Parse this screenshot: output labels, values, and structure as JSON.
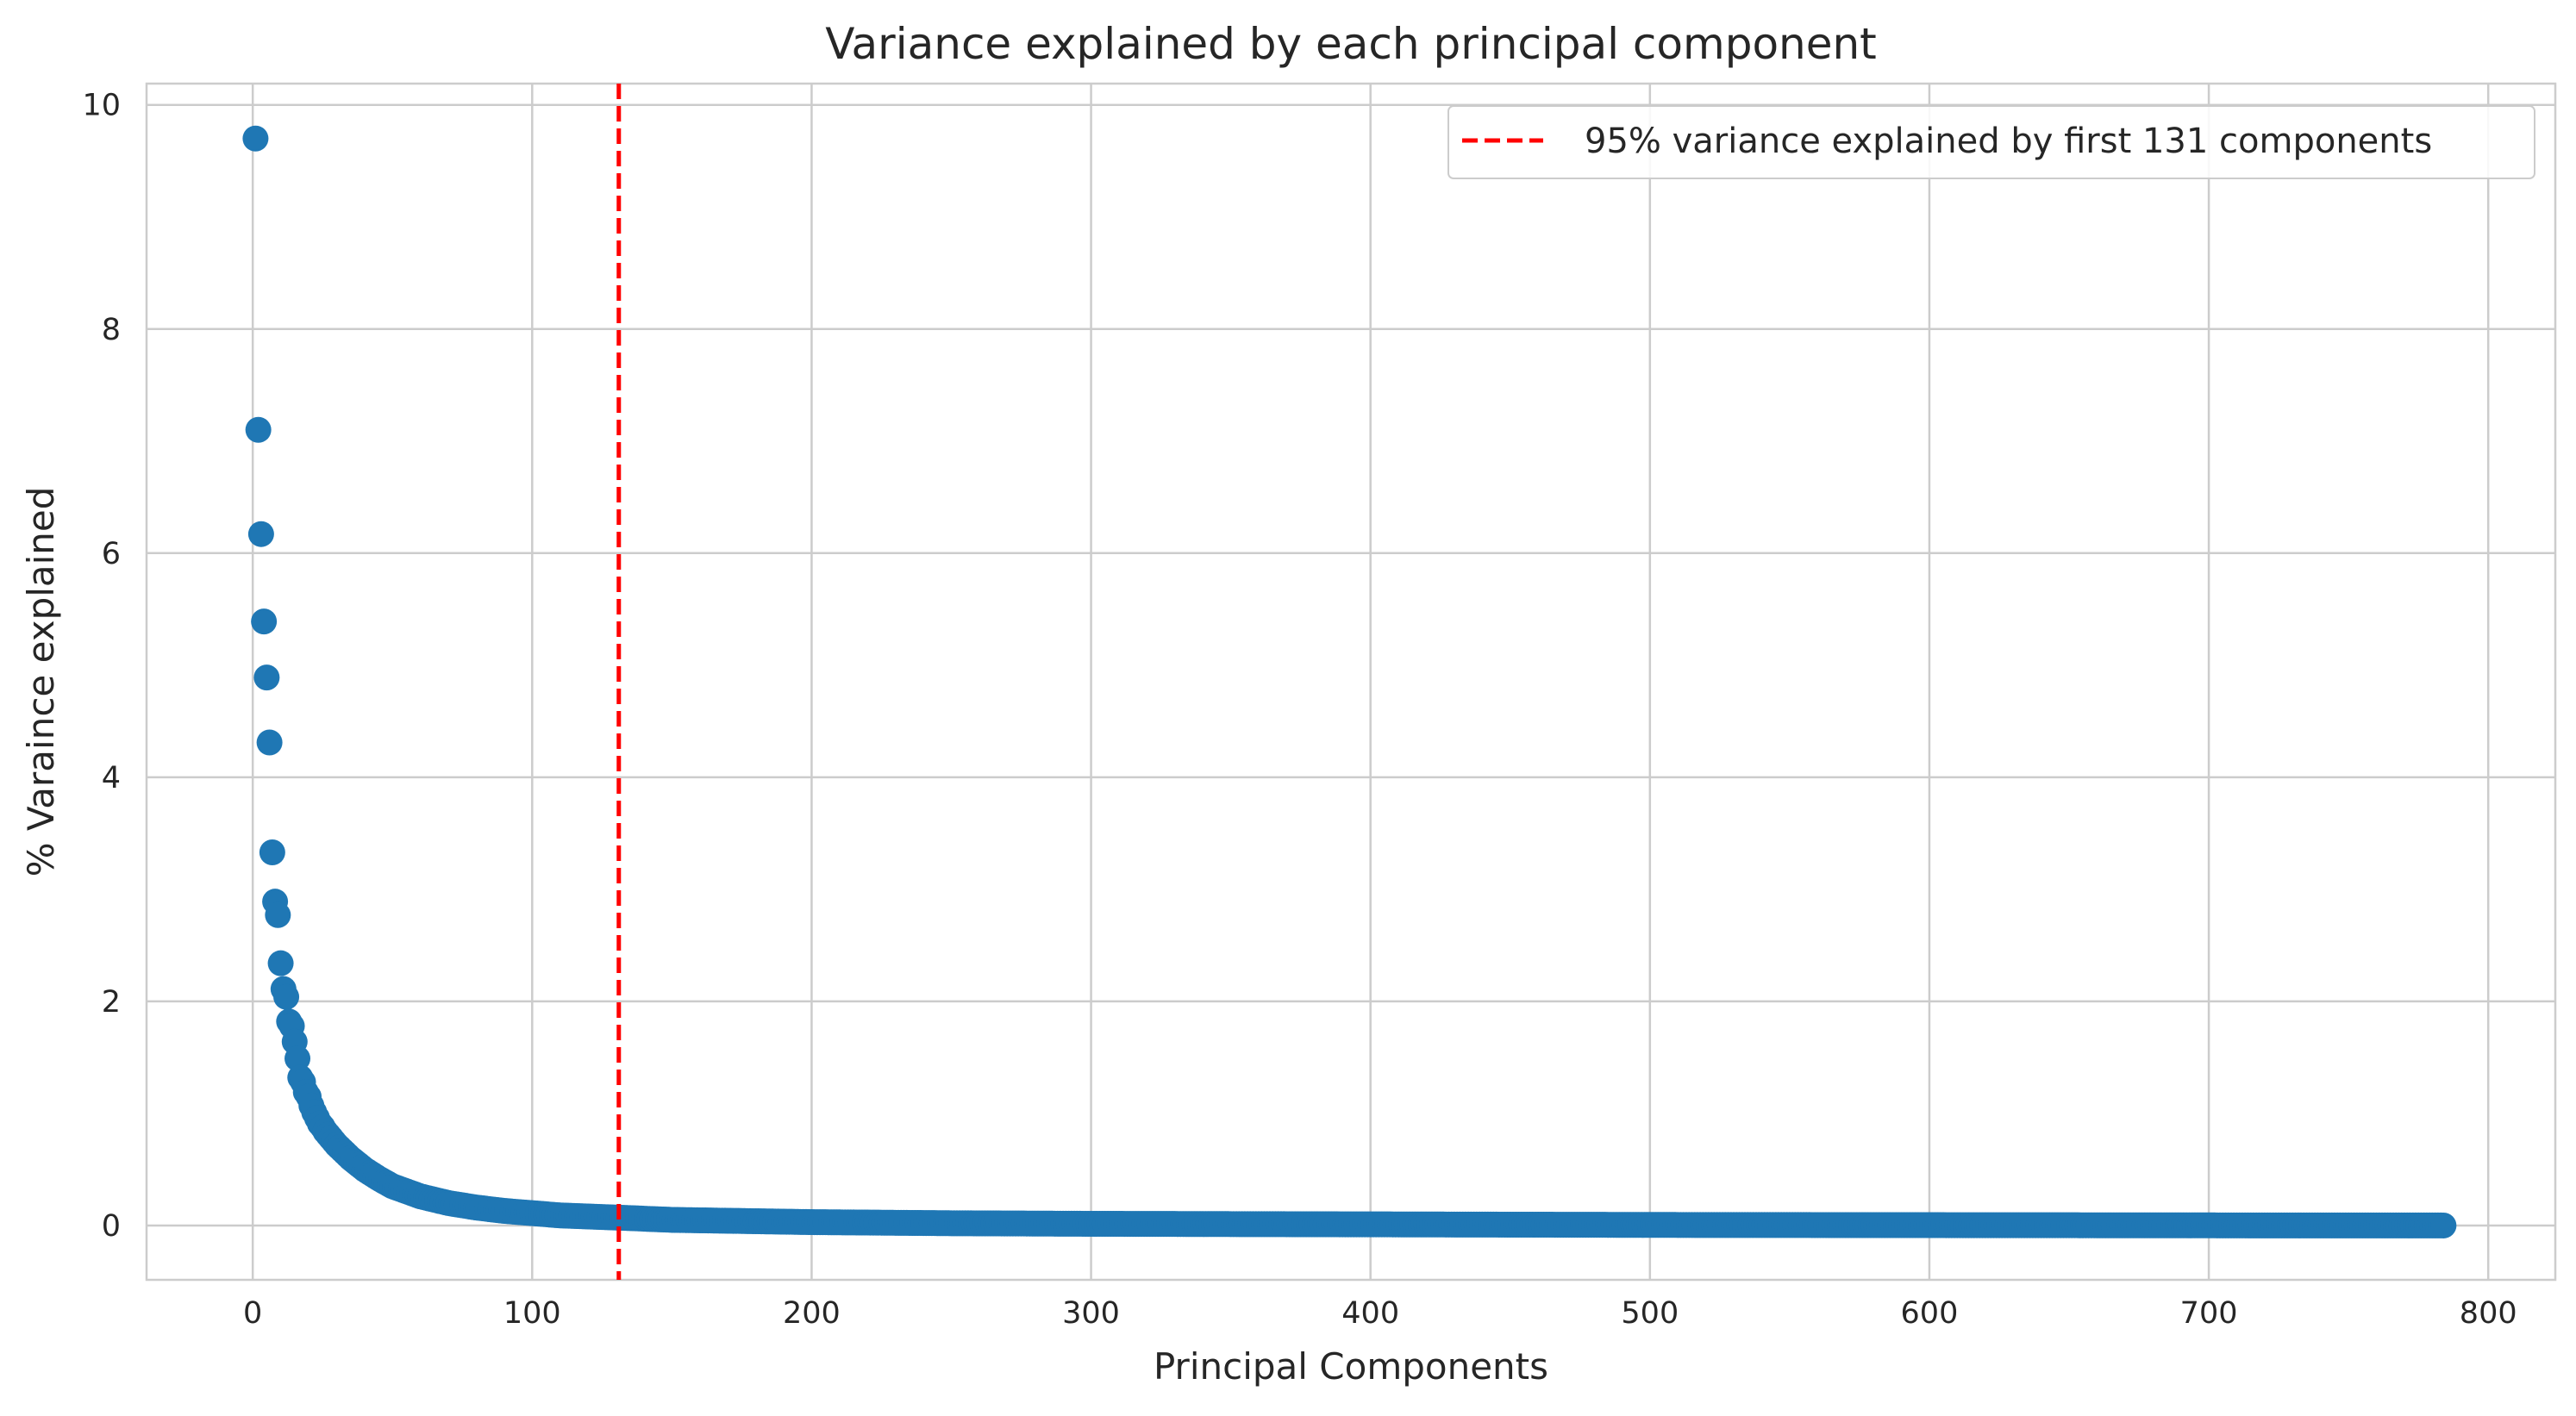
{
  "chart_data": {
    "type": "scatter",
    "title": "Variance explained by each principal component",
    "xlabel": "Principal Components",
    "ylabel": "% Varaince explained",
    "xlim": [
      -38,
      824
    ],
    "ylim": [
      -0.485,
      10.19
    ],
    "xticks": [
      0,
      100,
      200,
      300,
      400,
      500,
      600,
      700,
      800
    ],
    "yticks": [
      0,
      2,
      4,
      6,
      8,
      10
    ],
    "grid": true,
    "point_color": "#1f77b4",
    "n_components": 784,
    "series": [
      {
        "x": [
          1,
          2,
          3,
          4,
          5,
          6,
          7,
          8,
          9,
          10,
          11,
          12,
          13,
          14,
          15,
          16,
          17,
          18,
          19,
          20,
          21,
          22,
          23,
          24,
          25,
          26,
          27,
          28,
          29,
          30,
          35,
          40,
          45,
          50,
          60,
          70,
          80,
          90,
          100,
          110,
          120,
          131,
          150,
          175,
          200,
          250,
          300,
          400,
          500,
          600,
          700,
          784
        ],
        "y": [
          9.7,
          7.1,
          6.17,
          5.39,
          4.89,
          4.31,
          3.33,
          2.89,
          2.77,
          2.34,
          2.11,
          2.04,
          1.82,
          1.78,
          1.64,
          1.49,
          1.32,
          1.28,
          1.19,
          1.15,
          1.07,
          1.01,
          0.96,
          0.91,
          0.88,
          0.84,
          0.81,
          0.78,
          0.75,
          0.72,
          0.6,
          0.5,
          0.42,
          0.35,
          0.26,
          0.2,
          0.16,
          0.13,
          0.11,
          0.09,
          0.08,
          0.07,
          0.05,
          0.04,
          0.03,
          0.02,
          0.015,
          0.01,
          0.005,
          0.003,
          0.001,
          0.0
        ]
      }
    ],
    "vline": {
      "x": 131,
      "color": "#ff0000",
      "style": "dashed",
      "label": "95% variance explained by first 131 components"
    },
    "legend_position": "top-right"
  }
}
